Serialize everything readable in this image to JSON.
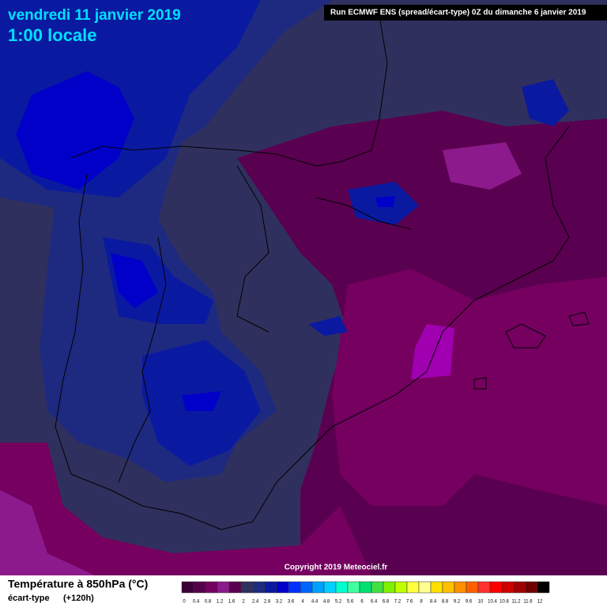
{
  "header": {
    "date": "vendredi 11 janvier 2019",
    "time": "1:00 locale",
    "run": "Run ECMWF ENS (spread/écart-type) 0Z du dimanche 6 janvier 2019",
    "copyright": "Copyright 2019 Meteociel.fr"
  },
  "legend": {
    "title": "Température à 850hPa (°C)",
    "subtitle": "écart-type",
    "lead": "(+120h)",
    "items": [
      {
        "label": "0",
        "color": "#3a0038"
      },
      {
        "label": "0.4",
        "color": "#55004a"
      },
      {
        "label": "0.8",
        "color": "#75005f"
      },
      {
        "label": "1.2",
        "color": "#8c1a8c"
      },
      {
        "label": "1.6",
        "color": "#5a0050"
      },
      {
        "label": "2",
        "color": "#30305e"
      },
      {
        "label": "2.4",
        "color": "#1e2a80"
      },
      {
        "label": "2.8",
        "color": "#0a1aa0"
      },
      {
        "label": "3.2",
        "color": "#0000c8"
      },
      {
        "label": "3.6",
        "color": "#0030ff"
      },
      {
        "label": "4",
        "color": "#0064ff"
      },
      {
        "label": "4.4",
        "color": "#00a0ff"
      },
      {
        "label": "4.8",
        "color": "#00d0ff"
      },
      {
        "label": "5.2",
        "color": "#00ffd0"
      },
      {
        "label": "5.6",
        "color": "#40ffa0"
      },
      {
        "label": "6",
        "color": "#00e070"
      },
      {
        "label": "6.4",
        "color": "#40e040"
      },
      {
        "label": "6.8",
        "color": "#80f000"
      },
      {
        "label": "7.2",
        "color": "#c0ff00"
      },
      {
        "label": "7.6",
        "color": "#ffff40"
      },
      {
        "label": "8",
        "color": "#ffff90"
      },
      {
        "label": "8.4",
        "color": "#ffe000"
      },
      {
        "label": "8.8",
        "color": "#ffc000"
      },
      {
        "label": "9.2",
        "color": "#ff9000"
      },
      {
        "label": "9.6",
        "color": "#ff6000"
      },
      {
        "label": "10",
        "color": "#ff3030"
      },
      {
        "label": "10.4",
        "color": "#ff0000"
      },
      {
        "label": "10.8",
        "color": "#d00000"
      },
      {
        "label": "11.2",
        "color": "#a00000"
      },
      {
        "label": "11.6",
        "color": "#700000"
      },
      {
        "label": "12",
        "color": "#000000"
      }
    ]
  }
}
